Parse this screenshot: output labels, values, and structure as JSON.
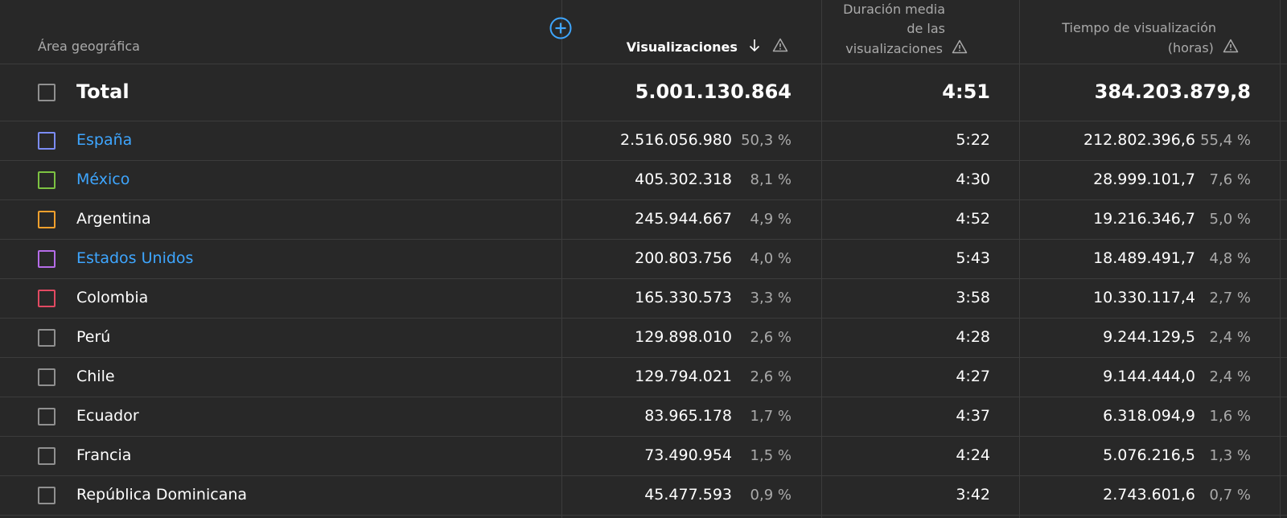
{
  "header": {
    "region": "Área geográfica",
    "views": "Visualizaciones",
    "avg_duration_line1": "Duración media",
    "avg_duration_line2": "de las",
    "avg_duration_line3": "visualizaciones",
    "watch_time_line1": "Tiempo de visualización",
    "watch_time_line2": "(horas)"
  },
  "total": {
    "label": "Total",
    "views": "5.001.130.864",
    "avg_duration": "4:51",
    "watch_time": "384.203.879,8"
  },
  "rows": [
    {
      "name": "España",
      "link": true,
      "color": "#7b8cf5",
      "views": "2.516.056.980",
      "views_pct": "50,3 %",
      "avg_duration": "5:22",
      "watch_time": "212.802.396,6",
      "watch_pct": "55,4 %"
    },
    {
      "name": "México",
      "link": true,
      "color": "#7cc242",
      "views": "405.302.318",
      "views_pct": "8,1 %",
      "avg_duration": "4:30",
      "watch_time": "28.999.101,7",
      "watch_pct": "7,6 %"
    },
    {
      "name": "Argentina",
      "link": false,
      "color": "#f2a02d",
      "views": "245.944.667",
      "views_pct": "4,9 %",
      "avg_duration": "4:52",
      "watch_time": "19.216.346,7",
      "watch_pct": "5,0 %"
    },
    {
      "name": "Estados Unidos",
      "link": true,
      "color": "#b56ce8",
      "views": "200.803.756",
      "views_pct": "4,0 %",
      "avg_duration": "5:43",
      "watch_time": "18.489.491,7",
      "watch_pct": "4,8 %"
    },
    {
      "name": "Colombia",
      "link": false,
      "color": "#e24a62",
      "views": "165.330.573",
      "views_pct": "3,3 %",
      "avg_duration": "3:58",
      "watch_time": "10.330.117,4",
      "watch_pct": "2,7 %"
    },
    {
      "name": "Perú",
      "link": false,
      "color": "#909090",
      "views": "129.898.010",
      "views_pct": "2,6 %",
      "avg_duration": "4:28",
      "watch_time": "9.244.129,5",
      "watch_pct": "2,4 %"
    },
    {
      "name": "Chile",
      "link": false,
      "color": "#909090",
      "views": "129.794.021",
      "views_pct": "2,6 %",
      "avg_duration": "4:27",
      "watch_time": "9.144.444,0",
      "watch_pct": "2,4 %"
    },
    {
      "name": "Ecuador",
      "link": false,
      "color": "#909090",
      "views": "83.965.178",
      "views_pct": "1,7 %",
      "avg_duration": "4:37",
      "watch_time": "6.318.094,9",
      "watch_pct": "1,6 %"
    },
    {
      "name": "Francia",
      "link": false,
      "color": "#909090",
      "views": "73.490.954",
      "views_pct": "1,5 %",
      "avg_duration": "4:24",
      "watch_time": "5.076.216,5",
      "watch_pct": "1,3 %"
    },
    {
      "name": "República Dominicana",
      "link": false,
      "color": "#909090",
      "views": "45.477.593",
      "views_pct": "0,9 %",
      "avg_duration": "3:42",
      "watch_time": "2.743.601,6",
      "watch_pct": "0,7 %"
    }
  ],
  "icons": {
    "add_column": "add-circle-icon",
    "sort": "arrow-down-icon",
    "warning": "warning-triangle-icon"
  },
  "colors": {
    "background": "#282828",
    "link": "#3ea6ff",
    "divider": "#3c3c3c"
  }
}
